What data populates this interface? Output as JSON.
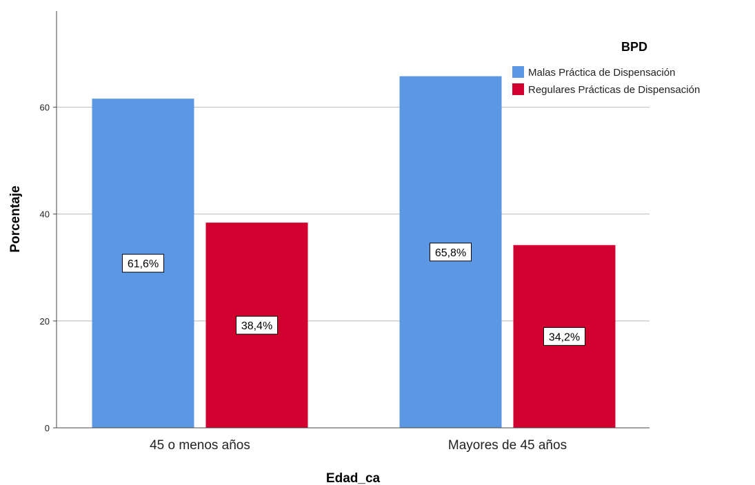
{
  "chart_data": {
    "type": "bar",
    "categories": [
      "45 o menos años",
      "Mayores de 45 años"
    ],
    "series": [
      {
        "name": "Malas Práctica de Dispensación",
        "values": [
          61.6,
          65.8
        ],
        "labels": [
          "61,6%",
          "65,8%"
        ],
        "color": "#5b97e3"
      },
      {
        "name": "Regulares Prácticas de Dispensación",
        "values": [
          38.4,
          34.2
        ],
        "labels": [
          "38,4%",
          "34,2%"
        ],
        "color": "#d2002f"
      }
    ],
    "xlabel": "Edad_ca",
    "ylabel": "Porcentaje",
    "ylim": [
      0,
      78
    ],
    "yticks": [
      0,
      20,
      40,
      60
    ],
    "ytick_labels": [
      "0",
      "20",
      "40",
      "60"
    ],
    "legend_title": "BPD",
    "legend_position": "top-right",
    "grid": true
  }
}
